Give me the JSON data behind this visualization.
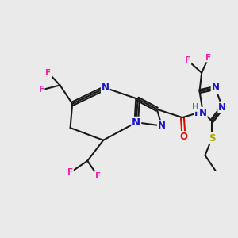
{
  "bg_color": "#eaeaea",
  "bond_color": "#1a1a1a",
  "bond_lw": 1.5,
  "atom_colors": {
    "N": "#1515cc",
    "O": "#dd1100",
    "F": "#ee22aa",
    "S": "#aaaa00",
    "H": "#338888",
    "C": "#1a1a1a"
  },
  "font_size": 8.5,
  "fig_size": [
    3.0,
    3.0
  ],
  "dpi": 100,
  "xlim": [
    -1,
    11
  ],
  "ylim": [
    -1,
    11
  ]
}
